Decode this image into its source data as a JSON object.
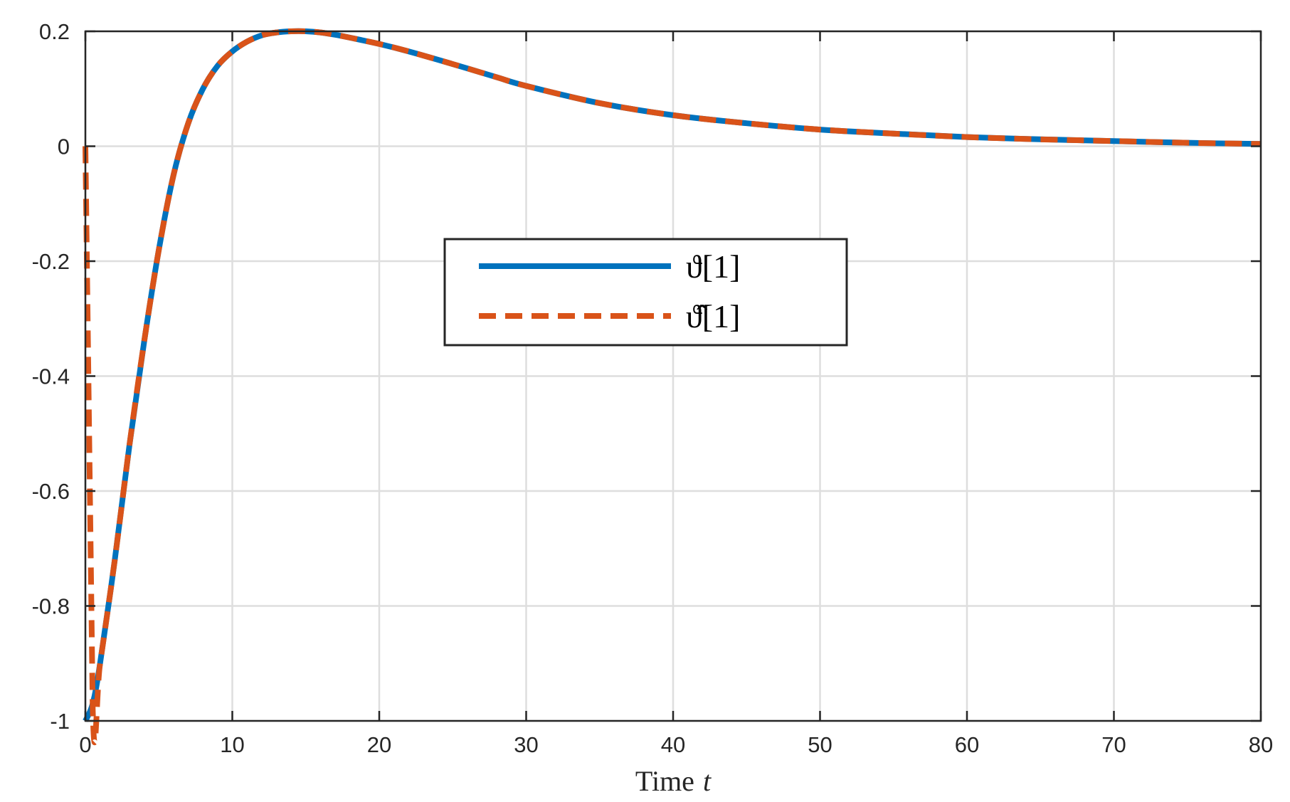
{
  "chart_data": {
    "type": "line",
    "xlabel": "Time",
    "xlabel_var": "t",
    "ylabel": "",
    "xlim": [
      0,
      80
    ],
    "ylim": [
      -1,
      0.2
    ],
    "xticks": [
      0,
      10,
      20,
      30,
      40,
      50,
      60,
      70,
      80
    ],
    "xtick_labels": [
      "0",
      "10",
      "20",
      "30",
      "40",
      "50",
      "60",
      "70",
      "80"
    ],
    "yticks": [
      -1,
      -0.8,
      -0.6,
      -0.4,
      -0.2,
      0,
      0.2
    ],
    "ytick_labels": [
      "-1",
      "-0.8",
      "-0.6",
      "-0.4",
      "-0.2",
      "0",
      "0.2"
    ],
    "grid": true,
    "legend_position": "center",
    "x": [
      0,
      0.5,
      1,
      2,
      3,
      4,
      5,
      6,
      7,
      8,
      9,
      10,
      11,
      12,
      13,
      14,
      15,
      16,
      17,
      18,
      20,
      22,
      25,
      28,
      30,
      35,
      40,
      45,
      50,
      55,
      60,
      65,
      70,
      75,
      80
    ],
    "series": [
      {
        "name": "ϑ[1]",
        "color": "#0072BD",
        "style": "solid",
        "values": [
          -1,
          -0.97,
          -0.9,
          -0.72,
          -0.52,
          -0.34,
          -0.18,
          -0.05,
          0.04,
          0.1,
          0.14,
          0.165,
          0.182,
          0.193,
          0.198,
          0.2,
          0.2,
          0.198,
          0.194,
          0.189,
          0.178,
          0.165,
          0.143,
          0.12,
          0.105,
          0.075,
          0.054,
          0.04,
          0.029,
          0.022,
          0.016,
          0.012,
          0.009,
          0.006,
          0.004
        ]
      },
      {
        "name": "ϑ̂[1]",
        "color": "#D95319",
        "style": "dashed",
        "values": [
          0,
          -0.98,
          -0.9,
          -0.72,
          -0.52,
          -0.34,
          -0.18,
          -0.05,
          0.04,
          0.1,
          0.14,
          0.165,
          0.182,
          0.193,
          0.198,
          0.2,
          0.2,
          0.198,
          0.194,
          0.189,
          0.178,
          0.165,
          0.143,
          0.12,
          0.105,
          0.075,
          0.054,
          0.04,
          0.029,
          0.022,
          0.016,
          0.012,
          0.009,
          0.006,
          0.004
        ]
      }
    ]
  }
}
